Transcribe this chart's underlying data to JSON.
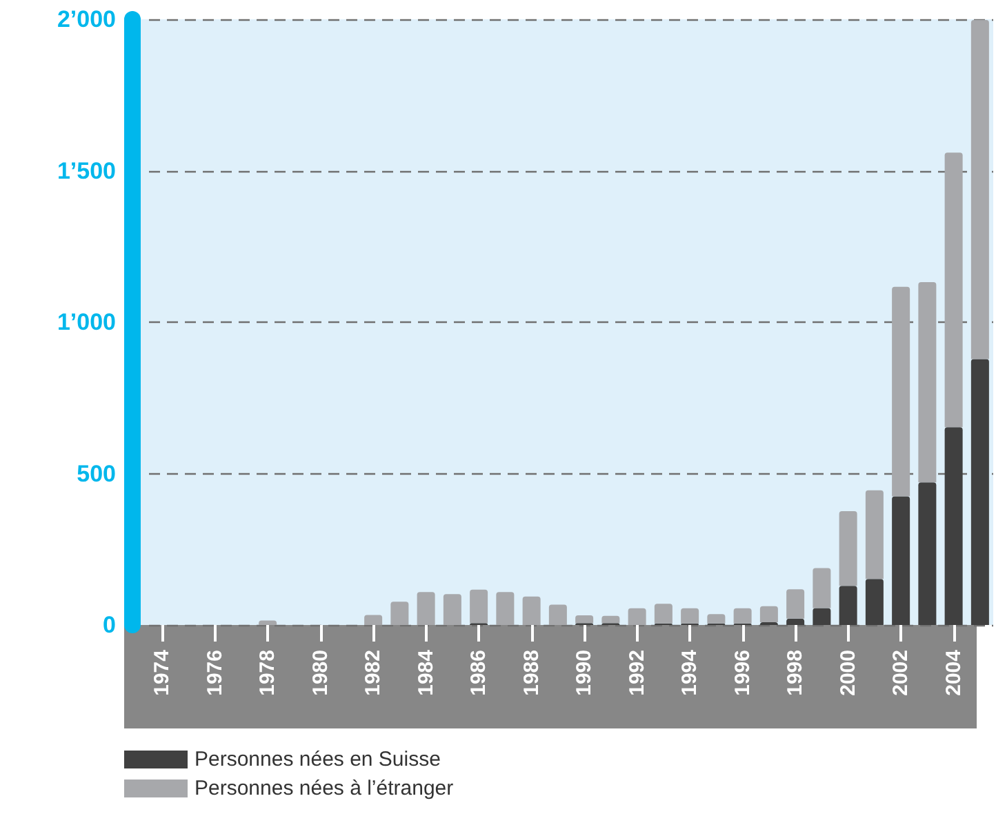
{
  "chart_data": {
    "type": "bar",
    "stacked": true,
    "categories": [
      "1974",
      null,
      "1976",
      null,
      "1978",
      null,
      "1980",
      null,
      "1982",
      null,
      "1984",
      null,
      "1986",
      null,
      "1988",
      null,
      "1990",
      null,
      "1992",
      null,
      "1994",
      null,
      "1996",
      null,
      "1998",
      null,
      "2000",
      null,
      "2002",
      null,
      "2004",
      null
    ],
    "series": [
      {
        "name": "Personnes nées en Suisse",
        "color": "#404040",
        "values": [
          0,
          0,
          0,
          0,
          0,
          0,
          0,
          0,
          0,
          0,
          0,
          0,
          6,
          0,
          0,
          0,
          6,
          6,
          0,
          5,
          5,
          5,
          5,
          9,
          21,
          56,
          129,
          152,
          425,
          471,
          653,
          878
        ]
      },
      {
        "name": "Personnes nées à l’étranger",
        "color": "#a7a8ab",
        "values": [
          0,
          0,
          0,
          0,
          15,
          0,
          0,
          0,
          33,
          77,
          109,
          102,
          111,
          109,
          94,
          67,
          26,
          24,
          55,
          65,
          50,
          31,
          50,
          53,
          97,
          132,
          247,
          293,
          692,
          661,
          907,
          1120
        ]
      }
    ],
    "ylim": [
      0,
      2000
    ],
    "yticks": [
      0,
      {
        "value": 500,
        "label": "500"
      },
      {
        "value": 1000,
        "label": "1’000"
      },
      {
        "value": 1500,
        "label": "1’500"
      },
      {
        "value": 2000,
        "label": "2’000"
      }
    ],
    "grid": "y",
    "legend": "bottom left"
  }
}
